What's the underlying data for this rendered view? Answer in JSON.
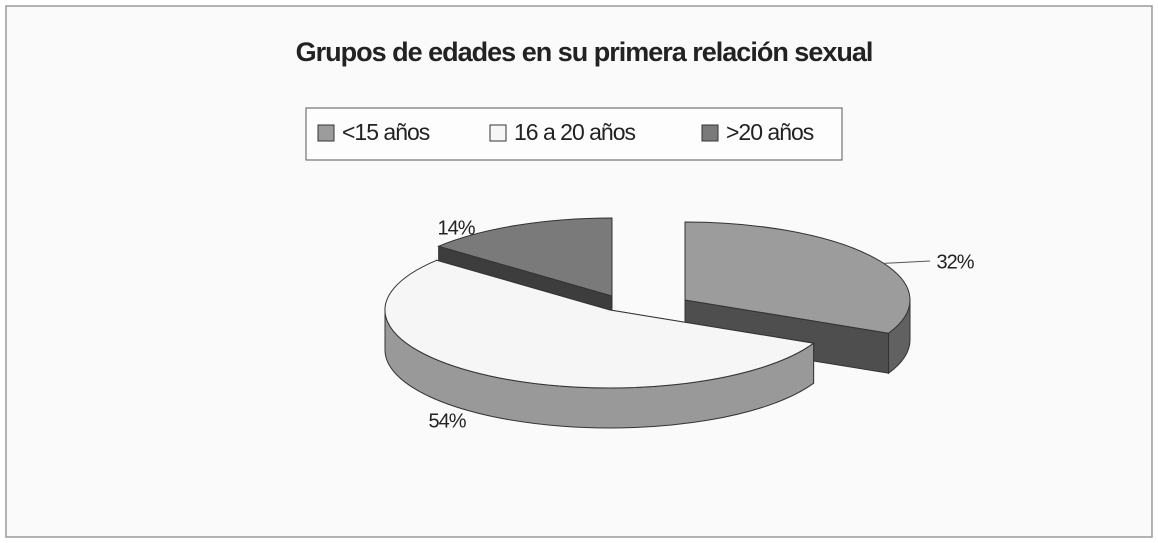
{
  "chart_data": {
    "type": "pie",
    "title": "Grupos de edades en su primera relación sexual",
    "categories": [
      "<15 años",
      "16 a 20 años",
      ">20 años"
    ],
    "values": [
      32,
      54,
      14
    ],
    "value_labels": [
      "32%",
      "54%",
      "14%"
    ],
    "colors": [
      "#9c9c9c",
      "#f6f6f6",
      "#7a7a7a"
    ]
  }
}
